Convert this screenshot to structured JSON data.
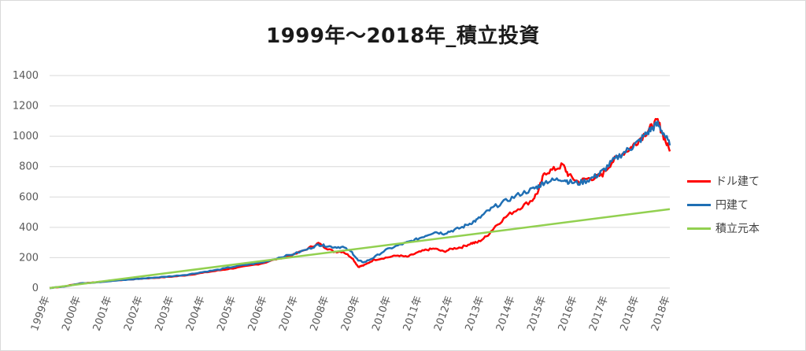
{
  "chart_data": {
    "type": "line",
    "title": "1999年～2018年_積立投資",
    "xlabel": "",
    "ylabel": "",
    "ylim": [
      0,
      1400
    ],
    "yticks": [
      0,
      200,
      400,
      600,
      800,
      1000,
      1200,
      1400
    ],
    "xlim": [
      1999,
      2018.9
    ],
    "xticks": [
      "1999年",
      "2000年",
      "2001年",
      "2002年",
      "2003年",
      "2004年",
      "2005年",
      "2006年",
      "2007年",
      "2008年",
      "2009年",
      "2010年",
      "2011年",
      "2012年",
      "2013年",
      "2014年",
      "2015年",
      "2016年",
      "2017年",
      "2018年",
      "2018年"
    ],
    "grid": true,
    "legend_position": "right",
    "series": [
      {
        "name": "ドル建て",
        "color": "#ff0000",
        "points": [
          [
            1999.0,
            0
          ],
          [
            1999.5,
            12
          ],
          [
            2000.0,
            30
          ],
          [
            2000.5,
            38
          ],
          [
            2001.0,
            48
          ],
          [
            2001.5,
            55
          ],
          [
            2002.0,
            62
          ],
          [
            2002.5,
            68
          ],
          [
            2003.0,
            75
          ],
          [
            2003.5,
            85
          ],
          [
            2004.0,
            100
          ],
          [
            2004.5,
            115
          ],
          [
            2005.0,
            130
          ],
          [
            2005.5,
            145
          ],
          [
            2006.0,
            165
          ],
          [
            2006.5,
            195
          ],
          [
            2007.0,
            220
          ],
          [
            2007.5,
            265
          ],
          [
            2007.8,
            295
          ],
          [
            2008.0,
            270
          ],
          [
            2008.3,
            240
          ],
          [
            2008.6,
            240
          ],
          [
            2008.9,
            200
          ],
          [
            2009.1,
            140
          ],
          [
            2009.3,
            150
          ],
          [
            2009.6,
            185
          ],
          [
            2010.0,
            200
          ],
          [
            2010.4,
            215
          ],
          [
            2010.7,
            205
          ],
          [
            2011.0,
            230
          ],
          [
            2011.3,
            250
          ],
          [
            2011.6,
            260
          ],
          [
            2011.9,
            240
          ],
          [
            2012.2,
            260
          ],
          [
            2012.5,
            270
          ],
          [
            2012.8,
            295
          ],
          [
            2013.0,
            300
          ],
          [
            2013.3,
            340
          ],
          [
            2013.6,
            410
          ],
          [
            2014.0,
            480
          ],
          [
            2014.4,
            530
          ],
          [
            2014.8,
            580
          ],
          [
            2015.0,
            640
          ],
          [
            2015.2,
            760
          ],
          [
            2015.5,
            780
          ],
          [
            2015.8,
            810
          ],
          [
            2016.0,
            740
          ],
          [
            2016.3,
            700
          ],
          [
            2016.6,
            720
          ],
          [
            2016.9,
            730
          ],
          [
            2017.1,
            750
          ],
          [
            2017.4,
            830
          ],
          [
            2017.7,
            880
          ],
          [
            2018.0,
            920
          ],
          [
            2018.2,
            960
          ],
          [
            2018.5,
            1020
          ],
          [
            2018.7,
            1060
          ],
          [
            2018.9,
            1100
          ],
          [
            2019.1,
            1000
          ],
          [
            2019.3,
            900
          ]
        ]
      },
      {
        "name": "円建て",
        "color": "#1f6fb4",
        "points": [
          [
            1999.0,
            0
          ],
          [
            1999.5,
            12
          ],
          [
            2000.0,
            30
          ],
          [
            2000.5,
            38
          ],
          [
            2001.0,
            46
          ],
          [
            2001.5,
            54
          ],
          [
            2002.0,
            62
          ],
          [
            2002.5,
            70
          ],
          [
            2003.0,
            78
          ],
          [
            2003.5,
            88
          ],
          [
            2004.0,
            105
          ],
          [
            2004.5,
            120
          ],
          [
            2005.0,
            140
          ],
          [
            2005.5,
            155
          ],
          [
            2006.0,
            170
          ],
          [
            2006.5,
            200
          ],
          [
            2007.0,
            225
          ],
          [
            2007.5,
            260
          ],
          [
            2007.8,
            285
          ],
          [
            2008.0,
            280
          ],
          [
            2008.3,
            270
          ],
          [
            2008.6,
            270
          ],
          [
            2008.9,
            235
          ],
          [
            2009.1,
            180
          ],
          [
            2009.3,
            170
          ],
          [
            2009.6,
            200
          ],
          [
            2010.0,
            250
          ],
          [
            2010.4,
            280
          ],
          [
            2010.7,
            300
          ],
          [
            2011.0,
            320
          ],
          [
            2011.3,
            345
          ],
          [
            2011.6,
            370
          ],
          [
            2011.9,
            360
          ],
          [
            2012.2,
            380
          ],
          [
            2012.5,
            400
          ],
          [
            2012.8,
            430
          ],
          [
            2013.0,
            450
          ],
          [
            2013.3,
            500
          ],
          [
            2013.6,
            540
          ],
          [
            2014.0,
            580
          ],
          [
            2014.4,
            620
          ],
          [
            2014.8,
            650
          ],
          [
            2015.0,
            670
          ],
          [
            2015.2,
            700
          ],
          [
            2015.5,
            710
          ],
          [
            2015.8,
            720
          ],
          [
            2016.0,
            700
          ],
          [
            2016.3,
            690
          ],
          [
            2016.6,
            710
          ],
          [
            2016.9,
            740
          ],
          [
            2017.1,
            770
          ],
          [
            2017.4,
            830
          ],
          [
            2017.7,
            880
          ],
          [
            2018.0,
            920
          ],
          [
            2018.2,
            950
          ],
          [
            2018.5,
            1010
          ],
          [
            2018.7,
            1050
          ],
          [
            2018.9,
            1080
          ],
          [
            2019.1,
            1020
          ],
          [
            2019.3,
            940
          ]
        ]
      },
      {
        "name": "積立元本",
        "color": "#92d050",
        "points": [
          [
            1999.0,
            0
          ],
          [
            2019.3,
            520
          ]
        ]
      }
    ]
  }
}
